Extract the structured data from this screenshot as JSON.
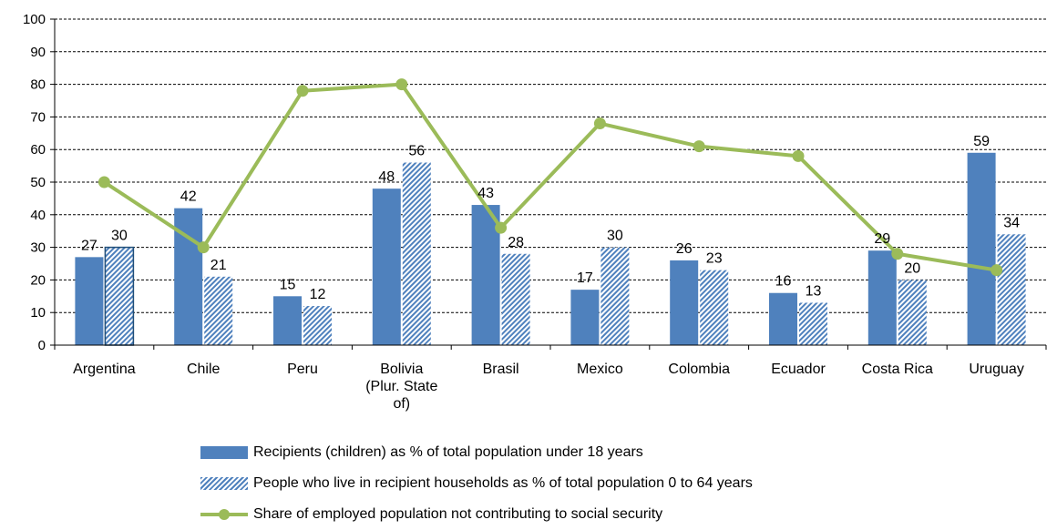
{
  "chart_data": {
    "type": "bar",
    "categories": [
      "Argentina",
      "Chile",
      "Peru",
      "Bolivia (Plur. State of)",
      "Brasil",
      "Mexico",
      "Colombia",
      "Ecuador",
      "Costa Rica",
      "Uruguay"
    ],
    "category_lines": [
      [
        "Argentina"
      ],
      [
        "Chile"
      ],
      [
        "Peru"
      ],
      [
        "Bolivia",
        "(Plur. State",
        "of)"
      ],
      [
        "Brasil"
      ],
      [
        "Mexico"
      ],
      [
        "Colombia"
      ],
      [
        "Ecuador"
      ],
      [
        "Costa Rica"
      ],
      [
        "Uruguay"
      ]
    ],
    "series": [
      {
        "name": "Recipients (children) as % of total population under 18 years",
        "kind": "bar",
        "pattern": "solid",
        "color": "#4f81bd",
        "values": [
          27,
          42,
          15,
          48,
          43,
          17,
          26,
          16,
          29,
          59
        ]
      },
      {
        "name": "People who live in recipient households as % of total population 0 to 64 years",
        "kind": "bar",
        "pattern": "hatched",
        "color": "#4f81bd",
        "values": [
          30,
          21,
          12,
          56,
          28,
          30,
          23,
          13,
          20,
          34
        ]
      },
      {
        "name": "Share of employed population not contributing to social security",
        "kind": "line",
        "color": "#9bbb59",
        "values": [
          50,
          30,
          78,
          80,
          36,
          68,
          61,
          58,
          28,
          23
        ]
      }
    ],
    "yticks": [
      0,
      10,
      20,
      30,
      40,
      50,
      60,
      70,
      80,
      90,
      100
    ],
    "ylim": [
      0,
      100
    ],
    "grid": "horizontal dashed",
    "legend_position": "bottom"
  }
}
